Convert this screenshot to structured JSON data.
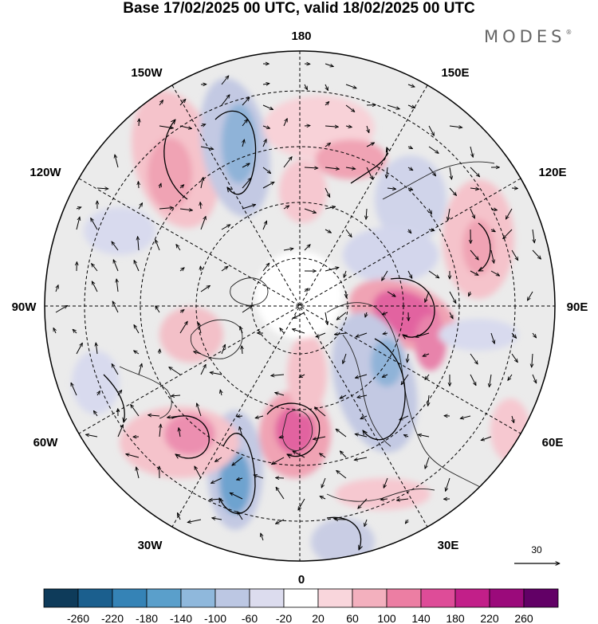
{
  "title": "Base 17/02/2025 00 UTC, valid 18/02/2025 00 UTC",
  "brand": {
    "name": "MODES",
    "mark": "®"
  },
  "map": {
    "projection": "polar-stereographic-north",
    "longitude_labels": {
      "top": "180",
      "bottom": "0",
      "left": "90W",
      "right": "90E",
      "upper_left_1": "150W",
      "upper_left_2": "120W",
      "upper_right_1": "150E",
      "upper_right_2": "120E",
      "lower_left_1": "60W",
      "lower_left_2": "30W",
      "lower_right_1": "60E",
      "lower_right_2": "30E"
    },
    "vector_reference": {
      "value": "30"
    },
    "colorbar": {
      "ticks": [
        "-260",
        "-220",
        "-180",
        "-140",
        "-100",
        "-60",
        "-20",
        "20",
        "60",
        "100",
        "140",
        "180",
        "220",
        "260"
      ],
      "colors": [
        "#0e3b5a",
        "#1b5f8e",
        "#3583b6",
        "#5a9fcb",
        "#8fb8dc",
        "#bcc7e3",
        "#dcdcee",
        "#ffffff",
        "#f9d6dc",
        "#f3b0be",
        "#ec7ea3",
        "#de4c98",
        "#c21f89",
        "#9b0a7b",
        "#620066"
      ]
    }
  }
}
